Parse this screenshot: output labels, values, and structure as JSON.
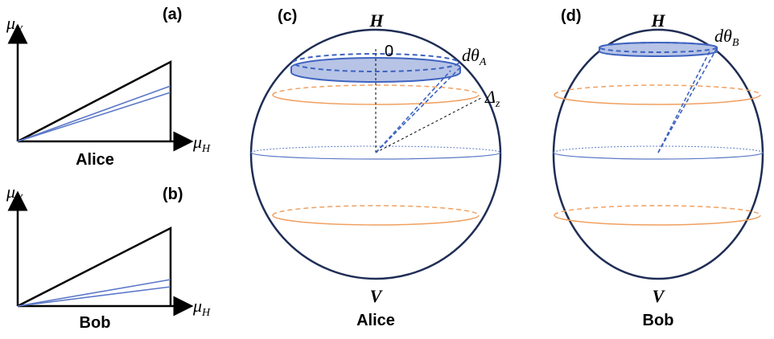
{
  "panels": [
    {
      "label": "(a)",
      "y_axis": {
        "symbol": "μ",
        "sub": "V"
      },
      "x_axis": {
        "symbol": "μ",
        "sub": "H"
      },
      "caption": "Alice"
    },
    {
      "label": "(b)",
      "y_axis": {
        "symbol": "μ",
        "sub": "V"
      },
      "x_axis": {
        "symbol": "μ",
        "sub": "H"
      },
      "caption": "Bob"
    },
    {
      "label": "(c)",
      "top": "H",
      "bottom": "V",
      "caption": "Alice",
      "zero": "0",
      "angle": {
        "symbol": "dθ",
        "sub": "A"
      },
      "delta": {
        "symbol": "Δ",
        "sub": "z"
      }
    },
    {
      "label": "(d)",
      "top": "H",
      "bottom": "V",
      "caption": "Bob",
      "angle": {
        "symbol": "dθ",
        "sub": "B"
      }
    }
  ]
}
